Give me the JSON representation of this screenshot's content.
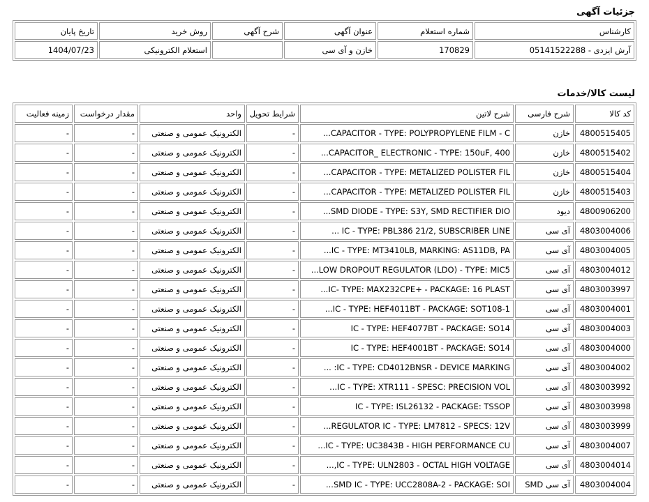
{
  "details": {
    "title": "جزئیات آگهی",
    "headers": [
      "کارشناس",
      "شماره استعلام",
      "عنوان آگهی",
      "شرح آگهی",
      "روش خرید",
      "تاریخ پایان"
    ],
    "values": [
      "آرش ایزدی - 05141522288",
      "170829",
      "خازن و آی سی",
      "",
      "استعلام الکترونیکی",
      "1404/07/23"
    ]
  },
  "items": {
    "title": "لیست کالا/خدمات",
    "headers": [
      "کد کالا",
      "شرح فارسی",
      "شرح لاتین",
      "شرایط تحویل",
      "واحد",
      "مقدار درخواست",
      "زمینه فعالیت"
    ],
    "rows": [
      [
        "4800515405",
        "خازن",
        "CAPACITOR - TYPE: POLYPROPYLENE FILM - C...",
        "-",
        "الکترونیک عمومی و صنعتی",
        "-",
        "-"
      ],
      [
        "4800515402",
        "خازن",
        "CAPACITOR_ ELECTRONIC - TYPE: 150uF, 400...",
        "-",
        "الکترونیک عمومی و صنعتی",
        "-",
        "-"
      ],
      [
        "4800515404",
        "خازن",
        "CAPACITOR - TYPE: METALIZED POLISTER FIL...",
        "-",
        "الکترونیک عمومی و صنعتی",
        "-",
        "-"
      ],
      [
        "4800515403",
        "خازن",
        "CAPACITOR - TYPE: METALIZED POLISTER FIL...",
        "-",
        "الکترونیک عمومی و صنعتی",
        "-",
        "-"
      ],
      [
        "4800906200",
        "دیود",
        "SMD DIODE - TYPE: S3Y, SMD RECTIFIER DIO...",
        "-",
        "الکترونیک عمومی و صنعتی",
        "-",
        "-"
      ],
      [
        "4803004006",
        "آی سی",
        "IC - TYPE: PBL386 21/2, SUBSCRIBER LINE ...",
        "-",
        "الکترونیک عمومی و صنعتی",
        "-",
        "-"
      ],
      [
        "4803004005",
        "آی سی",
        "IC - TYPE: MT3410LB, MARKING: AS11DB, PA...",
        "-",
        "الکترونیک عمومی و صنعتی",
        "-",
        "-"
      ],
      [
        "4803004012",
        "آی سی",
        "LOW DROPOUT REGULATOR (LDO) - TYPE: MIC5...",
        "-",
        "الکترونیک عمومی و صنعتی",
        "-",
        "-"
      ],
      [
        "4803003997",
        "آی سی",
        "IC- TYPE: MAX232CPE+ - PACKAGE: 16 PLAST...",
        "-",
        "الکترونیک عمومی و صنعتی",
        "-",
        "-"
      ],
      [
        "4803004001",
        "آی سی",
        "IC - TYPE: HEF4011BT - PACKAGE: SOT108-1...",
        "-",
        "الکترونیک عمومی و صنعتی",
        "-",
        "-"
      ],
      [
        "4803004003",
        "آی سی",
        "IC - TYPE: HEF4077BT - PACKAGE: SO14",
        "-",
        "الکترونیک عمومی و صنعتی",
        "-",
        "-"
      ],
      [
        "4803004000",
        "آی سی",
        "IC - TYPE: HEF4001BT - PACKAGE: SO14",
        "-",
        "الکترونیک عمومی و صنعتی",
        "-",
        "-"
      ],
      [
        "4803004002",
        "آی سی",
        "IC - TYPE: CD4012BNSR - DEVICE MARKING: ...",
        "-",
        "الکترونیک عمومی و صنعتی",
        "-",
        "-"
      ],
      [
        "4803003992",
        "آی سی",
        "IC - TYPE: XTR111 - SPESC: PRECISION VOL...",
        "-",
        "الکترونیک عمومی و صنعتی",
        "-",
        "-"
      ],
      [
        "4803003998",
        "آی سی",
        "IC - TYPE: ISL26132 - PACKAGE: TSSOP",
        "-",
        "الکترونیک عمومی و صنعتی",
        "-",
        "-"
      ],
      [
        "4803003999",
        "آی سی",
        "REGULATOR IC - TYPE: LM7812 - SPECS: 12V...",
        "-",
        "الکترونیک عمومی و صنعتی",
        "-",
        "-"
      ],
      [
        "4803004007",
        "آی سی",
        "IC - TYPE: UC3843B - HIGH PERFORMANCE CU...",
        "-",
        "الکترونیک عمومی و صنعتی",
        "-",
        "-"
      ],
      [
        "4803004014",
        "آی سی",
        "IC - TYPE: ULN2803 - OCTAL HIGH VOLTAGE,...",
        "-",
        "الکترونیک عمومی و صنعتی",
        "-",
        "-"
      ],
      [
        "4803004004",
        "آی سی SMD",
        "SMD IC - TYPE: UCC2808A-2 - PACKAGE: SOI...",
        "-",
        "الکترونیک عمومی و صنعتی",
        "-",
        "-"
      ]
    ]
  }
}
